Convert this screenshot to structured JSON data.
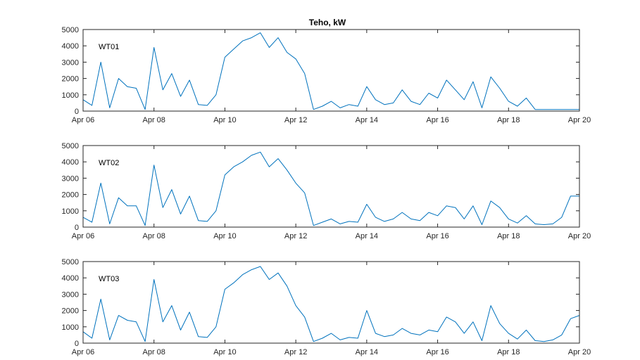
{
  "chart_data": [
    {
      "type": "line",
      "title": "Teho, kW",
      "panel_label": "WT01",
      "color": "#0072BD",
      "xlim": [
        "Apr 06",
        "Apr 20"
      ],
      "ylim": [
        0,
        5000
      ],
      "x_ticks": [
        "Apr 06",
        "Apr 08",
        "Apr 10",
        "Apr 12",
        "Apr 14",
        "Apr 16",
        "Apr 18",
        "Apr 20"
      ],
      "y_ticks": [
        0,
        1000,
        2000,
        3000,
        4000,
        5000
      ],
      "x": [
        "Apr 06 00:00",
        "Apr 06 06:00",
        "Apr 06 12:00",
        "Apr 06 18:00",
        "Apr 07 00:00",
        "Apr 07 06:00",
        "Apr 07 12:00",
        "Apr 07 18:00",
        "Apr 08 00:00",
        "Apr 08 06:00",
        "Apr 08 12:00",
        "Apr 08 18:00",
        "Apr 09 00:00",
        "Apr 09 06:00",
        "Apr 09 12:00",
        "Apr 09 18:00",
        "Apr 10 00:00",
        "Apr 10 06:00",
        "Apr 10 12:00",
        "Apr 10 18:00",
        "Apr 11 00:00",
        "Apr 11 06:00",
        "Apr 11 12:00",
        "Apr 11 18:00",
        "Apr 12 00:00",
        "Apr 12 06:00",
        "Apr 12 12:00",
        "Apr 12 18:00",
        "Apr 13 00:00",
        "Apr 13 06:00",
        "Apr 13 12:00",
        "Apr 13 18:00",
        "Apr 14 00:00",
        "Apr 14 06:00",
        "Apr 14 12:00",
        "Apr 14 18:00",
        "Apr 15 00:00",
        "Apr 15 06:00",
        "Apr 15 12:00",
        "Apr 15 18:00",
        "Apr 16 00:00",
        "Apr 16 06:00",
        "Apr 16 12:00",
        "Apr 16 18:00",
        "Apr 17 00:00",
        "Apr 17 06:00",
        "Apr 17 12:00",
        "Apr 17 18:00",
        "Apr 18 00:00",
        "Apr 18 06:00",
        "Apr 18 12:00",
        "Apr 18 18:00",
        "Apr 19 00:00",
        "Apr 19 06:00",
        "Apr 19 12:00",
        "Apr 19 18:00",
        "Apr 20 00:00"
      ],
      "y": [
        700,
        350,
        3000,
        200,
        2000,
        1500,
        1400,
        100,
        3900,
        1300,
        2300,
        900,
        1900,
        400,
        350,
        1000,
        3300,
        3800,
        4300,
        4500,
        4800,
        3900,
        4500,
        3600,
        3200,
        2300,
        100,
        300,
        600,
        200,
        400,
        300,
        1500,
        700,
        400,
        500,
        1300,
        600,
        400,
        1100,
        800,
        1900,
        1300,
        700,
        1800,
        200,
        2100,
        1400,
        600,
        300,
        800,
        100,
        100,
        100,
        100,
        100,
        100
      ]
    },
    {
      "type": "line",
      "panel_label": "WT02",
      "color": "#0072BD",
      "xlim": [
        "Apr 06",
        "Apr 20"
      ],
      "ylim": [
        0,
        5000
      ],
      "x_ticks": [
        "Apr 06",
        "Apr 08",
        "Apr 10",
        "Apr 12",
        "Apr 14",
        "Apr 16",
        "Apr 18",
        "Apr 20"
      ],
      "y_ticks": [
        0,
        1000,
        2000,
        3000,
        4000,
        5000
      ],
      "x": [
        "Apr 06 00:00",
        "Apr 06 06:00",
        "Apr 06 12:00",
        "Apr 06 18:00",
        "Apr 07 00:00",
        "Apr 07 06:00",
        "Apr 07 12:00",
        "Apr 07 18:00",
        "Apr 08 00:00",
        "Apr 08 06:00",
        "Apr 08 12:00",
        "Apr 08 18:00",
        "Apr 09 00:00",
        "Apr 09 06:00",
        "Apr 09 12:00",
        "Apr 09 18:00",
        "Apr 10 00:00",
        "Apr 10 06:00",
        "Apr 10 12:00",
        "Apr 10 18:00",
        "Apr 11 00:00",
        "Apr 11 06:00",
        "Apr 11 12:00",
        "Apr 11 18:00",
        "Apr 12 00:00",
        "Apr 12 06:00",
        "Apr 12 12:00",
        "Apr 12 18:00",
        "Apr 13 00:00",
        "Apr 13 06:00",
        "Apr 13 12:00",
        "Apr 13 18:00",
        "Apr 14 00:00",
        "Apr 14 06:00",
        "Apr 14 12:00",
        "Apr 14 18:00",
        "Apr 15 00:00",
        "Apr 15 06:00",
        "Apr 15 12:00",
        "Apr 15 18:00",
        "Apr 16 00:00",
        "Apr 16 06:00",
        "Apr 16 12:00",
        "Apr 16 18:00",
        "Apr 17 00:00",
        "Apr 17 06:00",
        "Apr 17 12:00",
        "Apr 17 18:00",
        "Apr 18 00:00",
        "Apr 18 06:00",
        "Apr 18 12:00",
        "Apr 18 18:00",
        "Apr 19 00:00",
        "Apr 19 06:00",
        "Apr 19 12:00",
        "Apr 19 18:00",
        "Apr 20 00:00"
      ],
      "y": [
        600,
        300,
        2700,
        200,
        1800,
        1300,
        1300,
        100,
        3800,
        1200,
        2300,
        800,
        1900,
        400,
        350,
        1000,
        3200,
        3700,
        4000,
        4400,
        4600,
        3700,
        4200,
        3500,
        2700,
        2100,
        100,
        300,
        500,
        200,
        350,
        300,
        1400,
        600,
        350,
        500,
        900,
        500,
        400,
        900,
        700,
        1300,
        1200,
        500,
        1300,
        150,
        1600,
        1200,
        500,
        250,
        700,
        200,
        150,
        200,
        600,
        1900,
        1900
      ]
    },
    {
      "type": "line",
      "panel_label": "WT03",
      "color": "#0072BD",
      "xlim": [
        "Apr 06",
        "Apr 20"
      ],
      "ylim": [
        0,
        5000
      ],
      "x_ticks": [
        "Apr 06",
        "Apr 08",
        "Apr 10",
        "Apr 12",
        "Apr 14",
        "Apr 16",
        "Apr 18",
        "Apr 20"
      ],
      "y_ticks": [
        0,
        1000,
        2000,
        3000,
        4000,
        5000
      ],
      "x": [
        "Apr 06 00:00",
        "Apr 06 06:00",
        "Apr 06 12:00",
        "Apr 06 18:00",
        "Apr 07 00:00",
        "Apr 07 06:00",
        "Apr 07 12:00",
        "Apr 07 18:00",
        "Apr 08 00:00",
        "Apr 08 06:00",
        "Apr 08 12:00",
        "Apr 08 18:00",
        "Apr 09 00:00",
        "Apr 09 06:00",
        "Apr 09 12:00",
        "Apr 09 18:00",
        "Apr 10 00:00",
        "Apr 10 06:00",
        "Apr 10 12:00",
        "Apr 10 18:00",
        "Apr 11 00:00",
        "Apr 11 06:00",
        "Apr 11 12:00",
        "Apr 11 18:00",
        "Apr 12 00:00",
        "Apr 12 06:00",
        "Apr 12 12:00",
        "Apr 12 18:00",
        "Apr 13 00:00",
        "Apr 13 06:00",
        "Apr 13 12:00",
        "Apr 13 18:00",
        "Apr 14 00:00",
        "Apr 14 06:00",
        "Apr 14 12:00",
        "Apr 14 18:00",
        "Apr 15 00:00",
        "Apr 15 06:00",
        "Apr 15 12:00",
        "Apr 15 18:00",
        "Apr 16 00:00",
        "Apr 16 06:00",
        "Apr 16 12:00",
        "Apr 16 18:00",
        "Apr 17 00:00",
        "Apr 17 06:00",
        "Apr 17 12:00",
        "Apr 17 18:00",
        "Apr 18 00:00",
        "Apr 18 06:00",
        "Apr 18 12:00",
        "Apr 18 18:00",
        "Apr 19 00:00",
        "Apr 19 06:00",
        "Apr 19 12:00",
        "Apr 19 18:00",
        "Apr 20 00:00"
      ],
      "y": [
        700,
        300,
        2700,
        200,
        1700,
        1400,
        1300,
        100,
        3900,
        1300,
        2300,
        800,
        1900,
        400,
        350,
        1000,
        3300,
        3700,
        4200,
        4500,
        4700,
        3900,
        4300,
        3500,
        2300,
        1600,
        100,
        300,
        600,
        200,
        350,
        300,
        2000,
        600,
        400,
        500,
        900,
        600,
        500,
        800,
        700,
        1600,
        1300,
        600,
        1300,
        150,
        2300,
        1200,
        600,
        250,
        800,
        150,
        100,
        200,
        500,
        1500,
        1700
      ]
    }
  ]
}
